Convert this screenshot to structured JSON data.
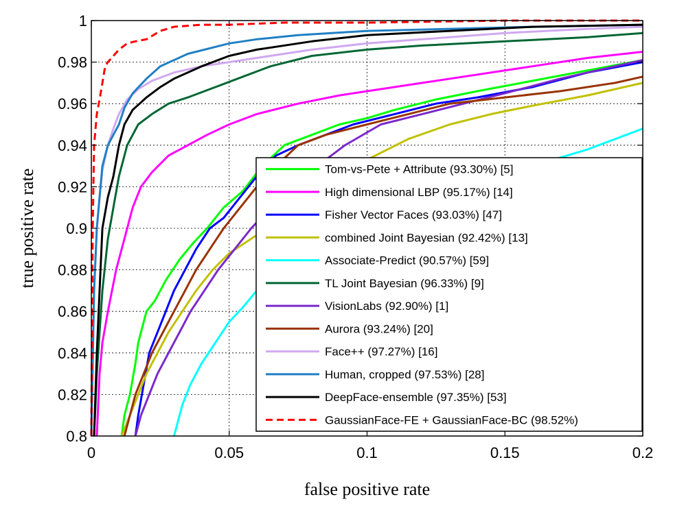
{
  "chart_data": {
    "type": "line",
    "xlabel": "false positive rate",
    "ylabel": "true positive rate",
    "xlim": [
      0,
      0.2
    ],
    "ylim": [
      0.8,
      1.0
    ],
    "xticks": [
      "0",
      "0.05",
      "0.1",
      "0.15",
      "0.2"
    ],
    "yticks": [
      "0.8",
      "0.82",
      "0.84",
      "0.86",
      "0.88",
      "0.9",
      "0.92",
      "0.94",
      "0.96",
      "0.98",
      "1"
    ],
    "grid": true,
    "legend_position": "bottom-right",
    "series": [
      {
        "name": "Tom-vs-Pete + Attribute (93.30%) [5]",
        "color": "#00ff00",
        "dash": false,
        "x": [
          0.011,
          0.012,
          0.014,
          0.016,
          0.017,
          0.02,
          0.023,
          0.027,
          0.032,
          0.037,
          0.042,
          0.048,
          0.055,
          0.062,
          0.07,
          0.08,
          0.09,
          0.1,
          0.11,
          0.125,
          0.14,
          0.16,
          0.18,
          0.2
        ],
        "y": [
          0.8,
          0.81,
          0.82,
          0.835,
          0.845,
          0.86,
          0.865,
          0.875,
          0.885,
          0.893,
          0.9,
          0.91,
          0.918,
          0.93,
          0.94,
          0.945,
          0.95,
          0.953,
          0.957,
          0.962,
          0.966,
          0.971,
          0.976,
          0.981
        ]
      },
      {
        "name": "High dimensional LBP (95.17%) [14]",
        "color": "#ff00ff",
        "dash": false,
        "x": [
          0.002,
          0.003,
          0.004,
          0.006,
          0.009,
          0.012,
          0.015,
          0.018,
          0.022,
          0.028,
          0.035,
          0.042,
          0.05,
          0.06,
          0.075,
          0.09,
          0.1,
          0.12,
          0.14,
          0.16,
          0.18,
          0.2
        ],
        "y": [
          0.8,
          0.83,
          0.845,
          0.86,
          0.88,
          0.895,
          0.91,
          0.92,
          0.927,
          0.935,
          0.94,
          0.945,
          0.95,
          0.955,
          0.96,
          0.964,
          0.966,
          0.97,
          0.974,
          0.978,
          0.982,
          0.985
        ]
      },
      {
        "name": "Fisher Vector Faces (93.03%) [47]",
        "color": "#0000ff",
        "dash": false,
        "x": [
          0.016,
          0.017,
          0.019,
          0.021,
          0.024,
          0.027,
          0.03,
          0.034,
          0.038,
          0.043,
          0.048,
          0.054,
          0.06,
          0.067,
          0.075,
          0.085,
          0.095,
          0.11,
          0.125,
          0.14,
          0.16,
          0.18,
          0.2
        ],
        "y": [
          0.8,
          0.81,
          0.825,
          0.84,
          0.85,
          0.86,
          0.87,
          0.88,
          0.89,
          0.9,
          0.905,
          0.915,
          0.925,
          0.935,
          0.94,
          0.945,
          0.95,
          0.955,
          0.96,
          0.963,
          0.968,
          0.975,
          0.98
        ]
      },
      {
        "name": "combined Joint Bayesian (92.42%) [13]",
        "color": "#c0c000",
        "dash": false,
        "x": [
          0.011,
          0.014,
          0.017,
          0.02,
          0.024,
          0.028,
          0.033,
          0.038,
          0.044,
          0.05,
          0.058,
          0.066,
          0.075,
          0.085,
          0.1,
          0.115,
          0.13,
          0.145,
          0.16,
          0.18,
          0.2
        ],
        "y": [
          0.8,
          0.81,
          0.82,
          0.83,
          0.84,
          0.85,
          0.86,
          0.87,
          0.88,
          0.888,
          0.895,
          0.902,
          0.91,
          0.92,
          0.933,
          0.943,
          0.95,
          0.955,
          0.959,
          0.964,
          0.97
        ]
      },
      {
        "name": "Associate-Predict (90.57%) [59]",
        "color": "#00ffff",
        "dash": false,
        "x": [
          0.03,
          0.031,
          0.033,
          0.036,
          0.04,
          0.045,
          0.05,
          0.055,
          0.06,
          0.07,
          0.08,
          0.09,
          0.1,
          0.12,
          0.14,
          0.16,
          0.18,
          0.2
        ],
        "y": [
          0.8,
          0.805,
          0.815,
          0.825,
          0.835,
          0.845,
          0.855,
          0.862,
          0.87,
          0.88,
          0.89,
          0.898,
          0.905,
          0.915,
          0.922,
          0.93,
          0.938,
          0.948
        ]
      },
      {
        "name": "TL Joint Bayesian (96.33%) [9]",
        "color": "#006633",
        "dash": false,
        "x": [
          0.001,
          0.002,
          0.003,
          0.004,
          0.006,
          0.008,
          0.01,
          0.013,
          0.017,
          0.022,
          0.028,
          0.035,
          0.045,
          0.055,
          0.065,
          0.08,
          0.1,
          0.12,
          0.15,
          0.18,
          0.2
        ],
        "y": [
          0.8,
          0.83,
          0.85,
          0.87,
          0.895,
          0.91,
          0.925,
          0.94,
          0.95,
          0.955,
          0.96,
          0.963,
          0.968,
          0.973,
          0.978,
          0.983,
          0.986,
          0.988,
          0.99,
          0.992,
          0.994
        ]
      },
      {
        "name": "VisionLabs (92.90%) [1]",
        "color": "#7a28cb",
        "dash": false,
        "x": [
          0.016,
          0.018,
          0.021,
          0.024,
          0.028,
          0.032,
          0.036,
          0.041,
          0.046,
          0.052,
          0.058,
          0.065,
          0.073,
          0.082,
          0.092,
          0.105,
          0.12,
          0.135,
          0.15,
          0.17,
          0.19,
          0.2
        ],
        "y": [
          0.8,
          0.81,
          0.82,
          0.83,
          0.84,
          0.85,
          0.86,
          0.87,
          0.88,
          0.89,
          0.9,
          0.91,
          0.92,
          0.93,
          0.94,
          0.95,
          0.955,
          0.96,
          0.965,
          0.972,
          0.978,
          0.981
        ]
      },
      {
        "name": "Aurora (93.24%) [20]",
        "color": "#993300",
        "dash": false,
        "x": [
          0.012,
          0.014,
          0.016,
          0.019,
          0.022,
          0.026,
          0.03,
          0.034,
          0.038,
          0.043,
          0.048,
          0.054,
          0.06,
          0.067,
          0.075,
          0.085,
          0.1,
          0.115,
          0.13,
          0.15,
          0.17,
          0.19,
          0.2
        ],
        "y": [
          0.8,
          0.81,
          0.82,
          0.83,
          0.84,
          0.85,
          0.86,
          0.87,
          0.88,
          0.89,
          0.9,
          0.91,
          0.92,
          0.93,
          0.94,
          0.945,
          0.95,
          0.955,
          0.96,
          0.963,
          0.966,
          0.97,
          0.973
        ]
      },
      {
        "name": "Face++ (97.27%) [16]",
        "color": "#d0a8f0",
        "dash": false,
        "x": [
          0.0,
          0.001,
          0.002,
          0.003,
          0.004,
          0.006,
          0.008,
          0.01,
          0.013,
          0.017,
          0.022,
          0.03,
          0.04,
          0.05,
          0.06,
          0.08,
          0.1,
          0.12,
          0.15,
          0.18,
          0.2
        ],
        "y": [
          0.8,
          0.87,
          0.9,
          0.915,
          0.928,
          0.94,
          0.948,
          0.955,
          0.962,
          0.967,
          0.971,
          0.975,
          0.978,
          0.98,
          0.982,
          0.986,
          0.989,
          0.991,
          0.994,
          0.996,
          0.997
        ]
      },
      {
        "name": "Human, cropped (97.53%) [28]",
        "color": "#1f7fc4",
        "dash": false,
        "x": [
          0.0,
          0.001,
          0.002,
          0.003,
          0.004,
          0.006,
          0.008,
          0.01,
          0.012,
          0.015,
          0.02,
          0.025,
          0.035,
          0.05,
          0.06,
          0.075,
          0.1,
          0.13,
          0.16,
          0.2
        ],
        "y": [
          0.8,
          0.87,
          0.9,
          0.915,
          0.93,
          0.94,
          0.945,
          0.95,
          0.958,
          0.965,
          0.972,
          0.978,
          0.984,
          0.989,
          0.991,
          0.993,
          0.995,
          0.996,
          0.997,
          0.998
        ]
      },
      {
        "name": "DeepFace-ensemble (97.35%) [53]",
        "color": "#000000",
        "dash": false,
        "x": [
          0.001,
          0.002,
          0.003,
          0.004,
          0.006,
          0.008,
          0.01,
          0.012,
          0.015,
          0.02,
          0.025,
          0.03,
          0.04,
          0.05,
          0.06,
          0.08,
          0.1,
          0.13,
          0.16,
          0.2
        ],
        "y": [
          0.8,
          0.84,
          0.87,
          0.9,
          0.915,
          0.925,
          0.94,
          0.95,
          0.957,
          0.963,
          0.968,
          0.972,
          0.978,
          0.983,
          0.986,
          0.99,
          0.993,
          0.995,
          0.997,
          0.998
        ]
      },
      {
        "name": "GaussianFace-FE + GaussianFace-BC (98.52%)",
        "color": "#ff0000",
        "dash": true,
        "x": [
          0.0,
          0.0005,
          0.001,
          0.002,
          0.003,
          0.004,
          0.005,
          0.006,
          0.008,
          0.01,
          0.013,
          0.016,
          0.02,
          0.025,
          0.03,
          0.04,
          0.05,
          0.07,
          0.1,
          0.15,
          0.2
        ],
        "y": [
          0.8,
          0.9,
          0.94,
          0.955,
          0.962,
          0.97,
          0.978,
          0.98,
          0.983,
          0.986,
          0.989,
          0.99,
          0.991,
          0.995,
          0.997,
          0.998,
          0.998,
          0.999,
          0.999,
          1.0,
          1.0
        ]
      }
    ]
  }
}
